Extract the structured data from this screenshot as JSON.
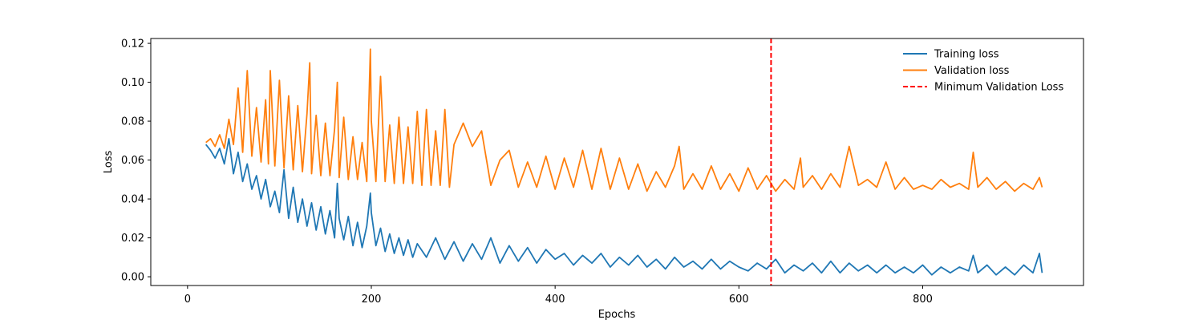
{
  "chart_data": {
    "type": "line",
    "title": "",
    "xlabel": "Epochs",
    "ylabel": "Loss",
    "xlim": [
      -40,
      975
    ],
    "ylim": [
      -0.0045,
      0.1225
    ],
    "xticks": [
      0,
      200,
      400,
      600,
      800
    ],
    "yticks": [
      0.0,
      0.02,
      0.04,
      0.06,
      0.08,
      0.1,
      0.12
    ],
    "ytick_labels": [
      "0.00",
      "0.02",
      "0.04",
      "0.06",
      "0.08",
      "0.10",
      "0.12"
    ],
    "grid": false,
    "legend_position": "top-right",
    "series": [
      {
        "name": "Training loss",
        "color": "#1f77b4",
        "x": [
          20,
          25,
          30,
          35,
          40,
          45,
          50,
          55,
          60,
          65,
          70,
          75,
          80,
          85,
          90,
          95,
          100,
          105,
          110,
          115,
          120,
          125,
          130,
          135,
          140,
          145,
          150,
          155,
          160,
          163,
          165,
          170,
          175,
          180,
          185,
          190,
          195,
          199,
          200,
          205,
          210,
          215,
          220,
          225,
          230,
          235,
          240,
          245,
          250,
          260,
          270,
          280,
          290,
          300,
          310,
          320,
          330,
          340,
          350,
          360,
          370,
          380,
          390,
          400,
          410,
          420,
          430,
          440,
          450,
          460,
          470,
          480,
          490,
          500,
          510,
          520,
          530,
          540,
          550,
          560,
          570,
          580,
          590,
          600,
          610,
          620,
          630,
          640,
          650,
          660,
          670,
          680,
          690,
          700,
          710,
          720,
          730,
          740,
          750,
          760,
          770,
          780,
          790,
          800,
          810,
          820,
          830,
          840,
          850,
          855,
          860,
          870,
          880,
          890,
          900,
          910,
          920,
          927,
          930
        ],
        "values": [
          0.068,
          0.065,
          0.061,
          0.066,
          0.058,
          0.071,
          0.053,
          0.064,
          0.049,
          0.058,
          0.045,
          0.052,
          0.04,
          0.05,
          0.036,
          0.044,
          0.033,
          0.055,
          0.03,
          0.046,
          0.028,
          0.04,
          0.026,
          0.038,
          0.024,
          0.036,
          0.022,
          0.034,
          0.02,
          0.048,
          0.03,
          0.019,
          0.031,
          0.016,
          0.028,
          0.015,
          0.026,
          0.043,
          0.033,
          0.016,
          0.025,
          0.013,
          0.022,
          0.012,
          0.02,
          0.011,
          0.019,
          0.01,
          0.017,
          0.01,
          0.02,
          0.009,
          0.018,
          0.008,
          0.017,
          0.009,
          0.02,
          0.007,
          0.016,
          0.008,
          0.015,
          0.007,
          0.014,
          0.009,
          0.012,
          0.006,
          0.011,
          0.007,
          0.012,
          0.005,
          0.01,
          0.006,
          0.011,
          0.005,
          0.009,
          0.004,
          0.01,
          0.005,
          0.008,
          0.004,
          0.009,
          0.004,
          0.008,
          0.005,
          0.003,
          0.007,
          0.004,
          0.009,
          0.002,
          0.006,
          0.003,
          0.007,
          0.002,
          0.008,
          0.002,
          0.007,
          0.003,
          0.006,
          0.002,
          0.006,
          0.002,
          0.005,
          0.002,
          0.006,
          0.001,
          0.005,
          0.002,
          0.005,
          0.003,
          0.011,
          0.002,
          0.006,
          0.001,
          0.005,
          0.001,
          0.006,
          0.002,
          0.012,
          0.002
        ]
      },
      {
        "name": "Validation loss",
        "color": "#ff7f0e",
        "x": [
          20,
          25,
          30,
          35,
          40,
          45,
          50,
          55,
          60,
          65,
          70,
          75,
          80,
          85,
          88,
          90,
          95,
          100,
          105,
          110,
          115,
          120,
          125,
          130,
          133,
          135,
          140,
          145,
          150,
          155,
          160,
          163,
          165,
          170,
          175,
          180,
          185,
          190,
          195,
          199,
          200,
          205,
          210,
          215,
          220,
          225,
          230,
          235,
          240,
          245,
          250,
          255,
          260,
          265,
          270,
          275,
          280,
          285,
          290,
          300,
          310,
          320,
          330,
          340,
          350,
          360,
          370,
          380,
          390,
          400,
          410,
          420,
          430,
          440,
          450,
          460,
          470,
          480,
          490,
          500,
          510,
          520,
          530,
          535,
          540,
          550,
          560,
          570,
          580,
          590,
          600,
          610,
          620,
          630,
          640,
          650,
          660,
          667,
          670,
          680,
          690,
          700,
          710,
          720,
          730,
          740,
          750,
          760,
          770,
          780,
          790,
          800,
          810,
          820,
          830,
          840,
          850,
          855,
          860,
          870,
          880,
          890,
          900,
          910,
          920,
          927,
          930
        ],
        "values": [
          0.069,
          0.071,
          0.067,
          0.073,
          0.066,
          0.081,
          0.068,
          0.097,
          0.064,
          0.106,
          0.062,
          0.087,
          0.059,
          0.091,
          0.058,
          0.106,
          0.057,
          0.101,
          0.056,
          0.093,
          0.055,
          0.088,
          0.054,
          0.084,
          0.11,
          0.053,
          0.083,
          0.052,
          0.079,
          0.052,
          0.076,
          0.1,
          0.051,
          0.082,
          0.05,
          0.072,
          0.05,
          0.069,
          0.049,
          0.117,
          0.08,
          0.049,
          0.103,
          0.049,
          0.078,
          0.048,
          0.082,
          0.048,
          0.077,
          0.048,
          0.085,
          0.047,
          0.086,
          0.047,
          0.075,
          0.047,
          0.086,
          0.046,
          0.068,
          0.079,
          0.067,
          0.075,
          0.047,
          0.06,
          0.065,
          0.046,
          0.059,
          0.046,
          0.062,
          0.045,
          0.061,
          0.046,
          0.065,
          0.045,
          0.066,
          0.045,
          0.061,
          0.045,
          0.058,
          0.044,
          0.054,
          0.046,
          0.057,
          0.067,
          0.045,
          0.053,
          0.045,
          0.057,
          0.045,
          0.053,
          0.044,
          0.056,
          0.045,
          0.052,
          0.044,
          0.05,
          0.045,
          0.061,
          0.046,
          0.052,
          0.045,
          0.053,
          0.046,
          0.067,
          0.047,
          0.05,
          0.046,
          0.059,
          0.045,
          0.051,
          0.045,
          0.047,
          0.045,
          0.05,
          0.046,
          0.048,
          0.045,
          0.064,
          0.046,
          0.051,
          0.045,
          0.049,
          0.044,
          0.048,
          0.045,
          0.051,
          0.046
        ]
      },
      {
        "name": "Minimum Validation Loss",
        "color": "#ff0000",
        "style": "dashed",
        "type": "vline",
        "x_value": 635
      }
    ]
  }
}
